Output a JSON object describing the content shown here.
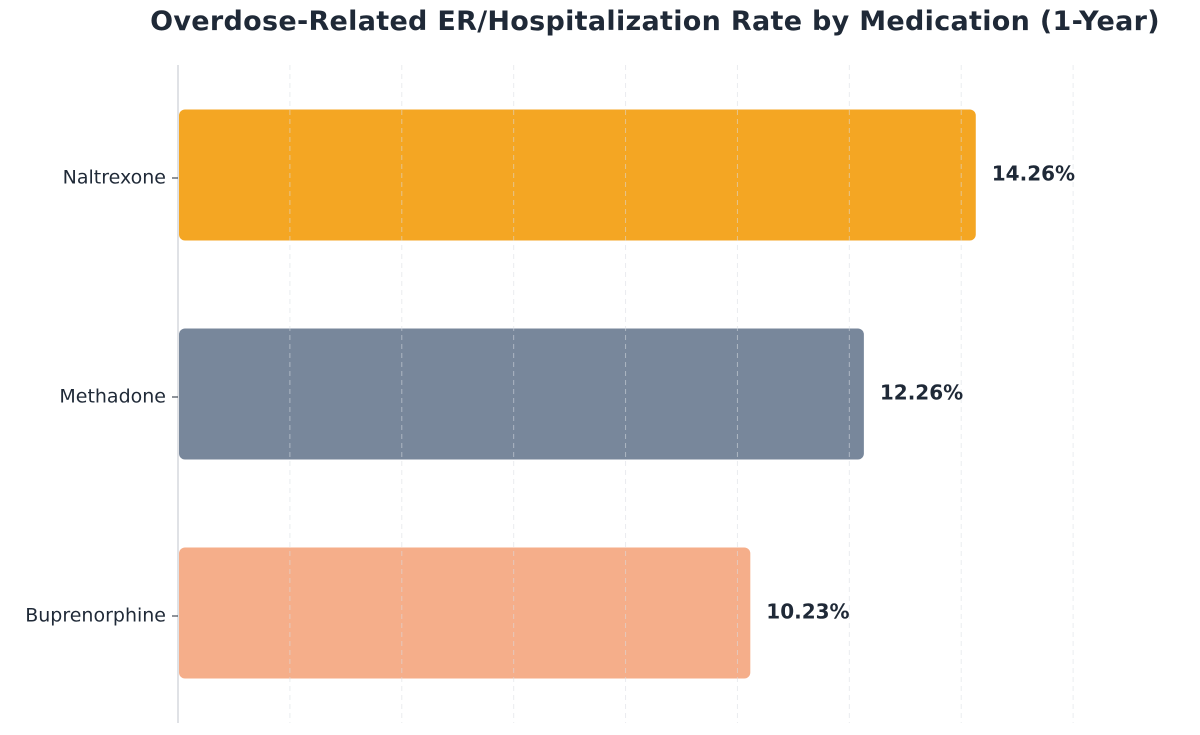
{
  "chart_data": {
    "type": "bar",
    "orientation": "horizontal",
    "title": "Overdose-Related ER/Hospitalization Rate by Medication (1-Year)",
    "xlabel": "",
    "ylabel": "",
    "categories": [
      "Naltrexone",
      "Methadone",
      "Buprenorphine"
    ],
    "values": [
      14.26,
      12.26,
      10.23
    ],
    "value_labels": [
      "14.26%",
      "12.26%",
      "10.23%"
    ],
    "colors": [
      "#f4a623",
      "#78879b",
      "#f5ae8a"
    ],
    "xlim": [
      0,
      18
    ],
    "x_gridlines": [
      2,
      4,
      6,
      8,
      10,
      12,
      14,
      16
    ],
    "grid": true,
    "legend": "none"
  }
}
